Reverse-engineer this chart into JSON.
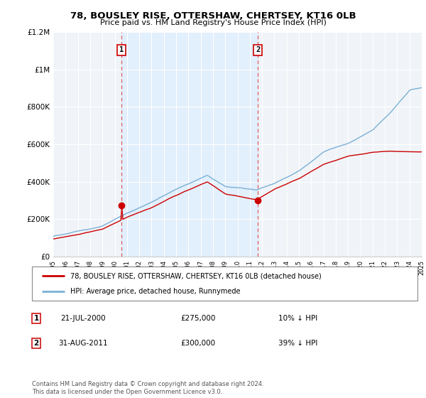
{
  "title": "78, BOUSLEY RISE, OTTERSHAW, CHERTSEY, KT16 0LB",
  "subtitle": "Price paid vs. HM Land Registry's House Price Index (HPI)",
  "legend_line1": "78, BOUSLEY RISE, OTTERSHAW, CHERTSEY, KT16 0LB (detached house)",
  "legend_line2": "HPI: Average price, detached house, Runnymede",
  "footnote": "Contains HM Land Registry data © Crown copyright and database right 2024.\nThis data is licensed under the Open Government Licence v3.0.",
  "transaction1_label": "1",
  "transaction1_date": "21-JUL-2000",
  "transaction1_price": "£275,000",
  "transaction1_hpi": "10% ↓ HPI",
  "transaction2_label": "2",
  "transaction2_date": "31-AUG-2011",
  "transaction2_price": "£300,000",
  "transaction2_hpi": "39% ↓ HPI",
  "sale_color": "#cc0000",
  "hpi_color": "#7ab0d4",
  "shade_color": "#ddeeff",
  "vline_color": "#dd4444",
  "bg_color": "#ffffff",
  "plot_bg": "#f0f4f8",
  "ylim": [
    0,
    1200000
  ],
  "yticks": [
    0,
    200000,
    400000,
    600000,
    800000,
    1000000,
    1200000
  ],
  "ytick_labels": [
    "£0",
    "£200K",
    "£400K",
    "£600K",
    "£800K",
    "£1M",
    "£1.2M"
  ],
  "xstart": 1995,
  "xend": 2025,
  "transaction1_x": 2000.55,
  "transaction2_x": 2011.66,
  "transaction1_price_val": 275000,
  "transaction2_price_val": 300000
}
